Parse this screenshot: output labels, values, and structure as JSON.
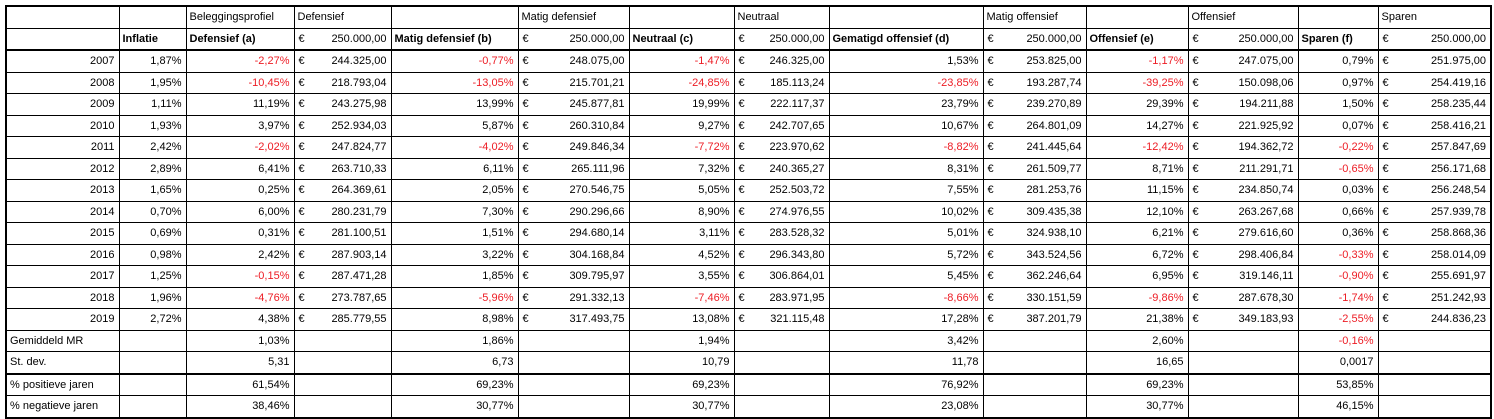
{
  "sheet": {
    "title_row": [
      "",
      "",
      "Beleggingsprofiel",
      "Defensief",
      "",
      "Matig defensief",
      "",
      "Neutraal",
      "",
      "Matig offensief",
      "",
      "Offensief",
      "",
      "Sparen"
    ],
    "column_header": [
      {
        "label": "",
        "bold": false
      },
      {
        "label": "Inflatie",
        "bold": true
      },
      {
        "label": "Defensief (a)",
        "bold": true
      },
      {
        "currency": "€",
        "value": "250.000,00"
      },
      {
        "label": "Matig defensief (b)",
        "bold": true
      },
      {
        "currency": "€",
        "value": "250.000,00"
      },
      {
        "label": "Neutraal (c)",
        "bold": true
      },
      {
        "currency": "€",
        "value": "250.000,00"
      },
      {
        "label": "Gematigd offensief (d)",
        "bold": true
      },
      {
        "currency": "€",
        "value": "250.000,00"
      },
      {
        "label": "Offensief (e)",
        "bold": true
      },
      {
        "currency": "€",
        "value": "250.000,00"
      },
      {
        "label": "Sparen (f)",
        "bold": true
      },
      {
        "currency": "€",
        "value": "250.000,00"
      }
    ],
    "currency_symbol": "€",
    "year_rows": [
      {
        "year": "2007",
        "inflatie": "1,87%",
        "cells": [
          "-2,27%",
          "244.325,00",
          "-0,77%",
          "248.075,00",
          "-1,47%",
          "246.325,00",
          "1,53%",
          "253.825,00",
          "-1,17%",
          "247.075,00",
          "0,79%",
          "251.975,00"
        ]
      },
      {
        "year": "2008",
        "inflatie": "1,95%",
        "cells": [
          "-10,45%",
          "218.793,04",
          "-13,05%",
          "215.701,21",
          "-24,85%",
          "185.113,24",
          "-23,85%",
          "193.287,74",
          "-39,25%",
          "150.098,06",
          "0,97%",
          "254.419,16"
        ]
      },
      {
        "year": "2009",
        "inflatie": "1,11%",
        "cells": [
          "11,19%",
          "243.275,98",
          "13,99%",
          "245.877,81",
          "19,99%",
          "222.117,37",
          "23,79%",
          "239.270,89",
          "29,39%",
          "194.211,88",
          "1,50%",
          "258.235,44"
        ]
      },
      {
        "year": "2010",
        "inflatie": "1,93%",
        "cells": [
          "3,97%",
          "252.934,03",
          "5,87%",
          "260.310,84",
          "9,27%",
          "242.707,65",
          "10,67%",
          "264.801,09",
          "14,27%",
          "221.925,92",
          "0,07%",
          "258.416,21"
        ]
      },
      {
        "year": "2011",
        "inflatie": "2,42%",
        "cells": [
          "-2,02%",
          "247.824,77",
          "-4,02%",
          "249.846,34",
          "-7,72%",
          "223.970,62",
          "-8,82%",
          "241.445,64",
          "-12,42%",
          "194.362,72",
          "-0,22%",
          "257.847,69"
        ]
      },
      {
        "year": "2012",
        "inflatie": "2,89%",
        "cells": [
          "6,41%",
          "263.710,33",
          "6,11%",
          "265.111,96",
          "7,32%",
          "240.365,27",
          "8,31%",
          "261.509,77",
          "8,71%",
          "211.291,71",
          "-0,65%",
          "256.171,68"
        ]
      },
      {
        "year": "2013",
        "inflatie": "1,65%",
        "cells": [
          "0,25%",
          "264.369,61",
          "2,05%",
          "270.546,75",
          "5,05%",
          "252.503,72",
          "7,55%",
          "281.253,76",
          "11,15%",
          "234.850,74",
          "0,03%",
          "256.248,54"
        ]
      },
      {
        "year": "2014",
        "inflatie": "0,70%",
        "cells": [
          "6,00%",
          "280.231,79",
          "7,30%",
          "290.296,66",
          "8,90%",
          "274.976,55",
          "10,02%",
          "309.435,38",
          "12,10%",
          "263.267,68",
          "0,66%",
          "257.939,78"
        ]
      },
      {
        "year": "2015",
        "inflatie": "0,69%",
        "cells": [
          "0,31%",
          "281.100,51",
          "1,51%",
          "294.680,14",
          "3,11%",
          "283.528,32",
          "5,01%",
          "324.938,10",
          "6,21%",
          "279.616,60",
          "0,36%",
          "258.868,36"
        ]
      },
      {
        "year": "2016",
        "inflatie": "0,98%",
        "cells": [
          "2,42%",
          "287.903,14",
          "3,22%",
          "304.168,84",
          "4,52%",
          "296.343,80",
          "5,72%",
          "343.524,56",
          "6,72%",
          "298.406,84",
          "-0,33%",
          "258.014,09"
        ]
      },
      {
        "year": "2017",
        "inflatie": "1,25%",
        "cells": [
          "-0,15%",
          "287.471,28",
          "1,85%",
          "309.795,97",
          "3,55%",
          "306.864,01",
          "5,45%",
          "362.246,64",
          "6,95%",
          "319.146,11",
          "-0,90%",
          "255.691,97"
        ]
      },
      {
        "year": "2018",
        "inflatie": "1,96%",
        "cells": [
          "-4,76%",
          "273.787,65",
          "-5,96%",
          "291.332,13",
          "-7,46%",
          "283.971,95",
          "-8,66%",
          "330.151,59",
          "-9,86%",
          "287.678,30",
          "-1,74%",
          "251.242,93"
        ]
      },
      {
        "year": "2019",
        "inflatie": "2,72%",
        "cells": [
          "4,38%",
          "285.779,55",
          "8,98%",
          "317.493,75",
          "13,08%",
          "321.115,48",
          "17,28%",
          "387.201,79",
          "21,38%",
          "349.183,93",
          "-2,55%",
          "244.836,23"
        ]
      }
    ],
    "summary_rows": [
      {
        "label": "Gemiddeld MR",
        "values": [
          "1,03%",
          "1,86%",
          "1,94%",
          "3,42%",
          "2,60%",
          "-0,16%"
        ]
      },
      {
        "label": "St. dev.",
        "values": [
          "5,31",
          "6,73",
          "10,79",
          "11,78",
          "16,65",
          "0,0017"
        ]
      },
      {
        "label": "% positieve jaren",
        "values": [
          "61,54%",
          "69,23%",
          "69,23%",
          "76,92%",
          "69,23%",
          "53,85%"
        ]
      },
      {
        "label": "% negatieve jaren",
        "values": [
          "38,46%",
          "30,77%",
          "30,77%",
          "23,08%",
          "30,77%",
          "46,15%"
        ]
      }
    ],
    "colors": {
      "negative_value": "#ed1c24",
      "text": "#000000",
      "gridline": "#000000",
      "background": "#ffffff"
    }
  }
}
